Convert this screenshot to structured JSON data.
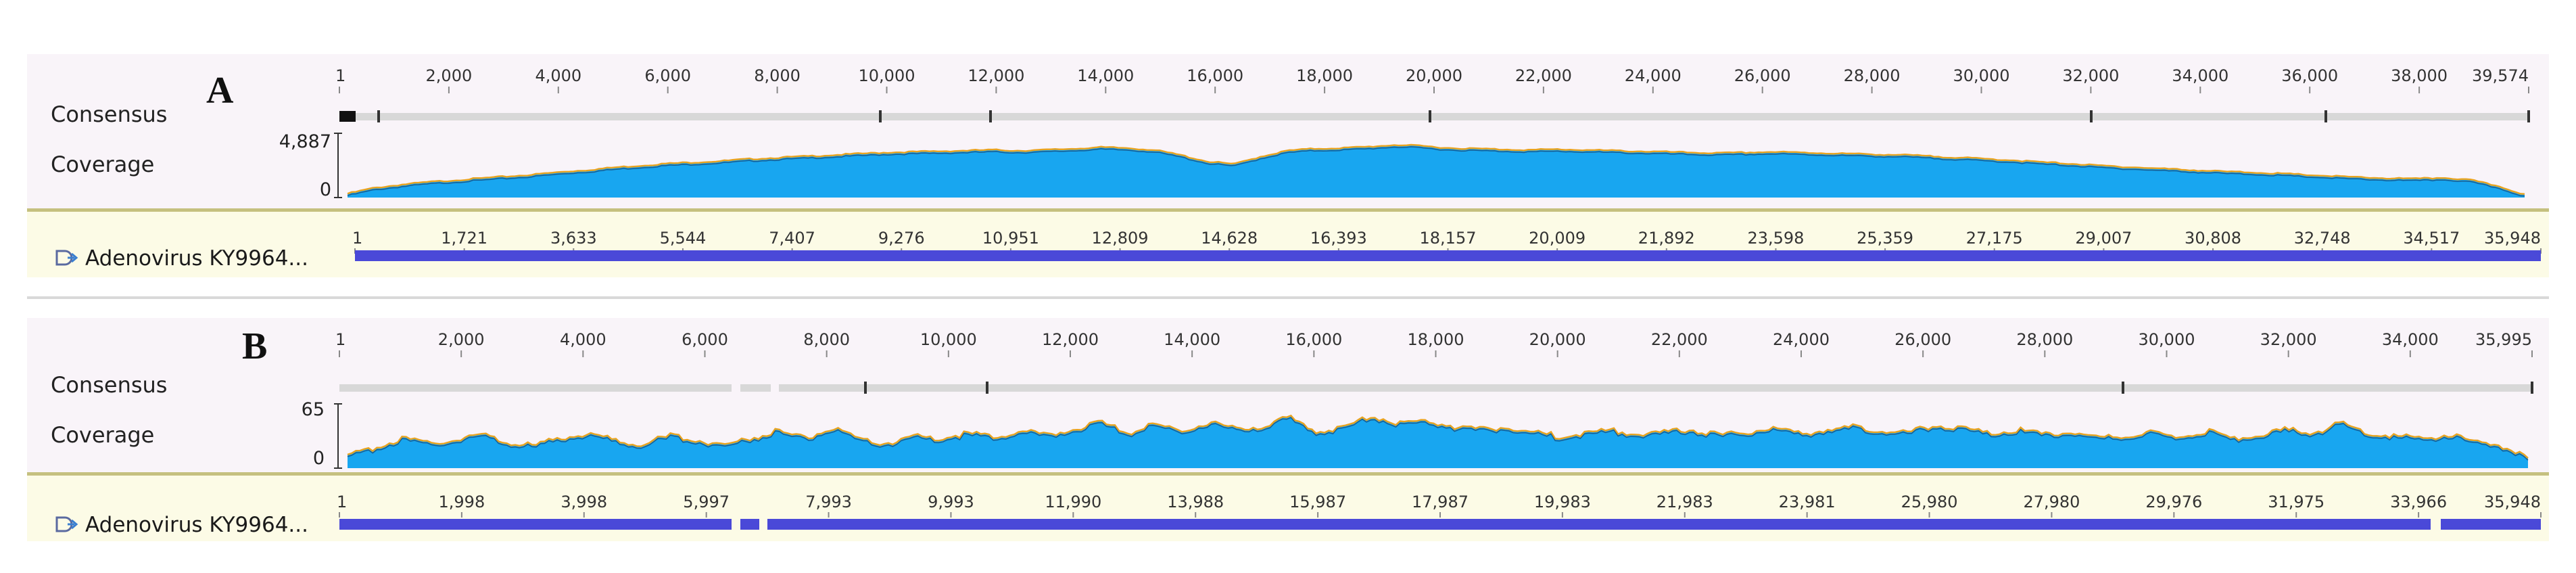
{
  "panels": [
    {
      "letter": "A",
      "consensus_label": "Consensus",
      "coverage_label": "Coverage",
      "coverage_max": "4,887",
      "coverage_min": "0",
      "ruler_ticks": [
        "1",
        "2,000",
        "4,000",
        "6,000",
        "8,000",
        "10,000",
        "12,000",
        "14,000",
        "16,000",
        "18,000",
        "20,000",
        "22,000",
        "24,000",
        "26,000",
        "28,000",
        "30,000",
        "32,000",
        "34,000",
        "36,000",
        "38,000",
        "39,574"
      ],
      "reference_name": "Adenovirus KY9964...",
      "reference_ticks": [
        "1",
        "1,721",
        "3,633",
        "5,544",
        "7,407",
        "9,276",
        "10,951",
        "12,809",
        "14,628",
        "16,393",
        "18,157",
        "20,009",
        "21,892",
        "23,598",
        "25,359",
        "27,175",
        "29,007",
        "30,808",
        "32,748",
        "34,517",
        "35,948"
      ],
      "coverage_profile": [
        0.06,
        0.15,
        0.2,
        0.24,
        0.27,
        0.3,
        0.33,
        0.36,
        0.4,
        0.43,
        0.47,
        0.5,
        0.53,
        0.55,
        0.57,
        0.6,
        0.62,
        0.64,
        0.66,
        0.68,
        0.7,
        0.71,
        0.72,
        0.73,
        0.74,
        0.73,
        0.74,
        0.76,
        0.78,
        0.77,
        0.74,
        0.66,
        0.56,
        0.52,
        0.64,
        0.73,
        0.76,
        0.77,
        0.79,
        0.82,
        0.8,
        0.77,
        0.76,
        0.75,
        0.74,
        0.75,
        0.74,
        0.73,
        0.72,
        0.71,
        0.7,
        0.69,
        0.7,
        0.71,
        0.7,
        0.69,
        0.68,
        0.67,
        0.66,
        0.64,
        0.62,
        0.6,
        0.58,
        0.55,
        0.53,
        0.5,
        0.48,
        0.46,
        0.44,
        0.42,
        0.4,
        0.39,
        0.37,
        0.35,
        0.33,
        0.31,
        0.3,
        0.29,
        0.31,
        0.27,
        0.18,
        0.05
      ]
    },
    {
      "letter": "B",
      "consensus_label": "Consensus",
      "coverage_label": "Coverage",
      "coverage_max": "65",
      "coverage_min": "0",
      "ruler_ticks": [
        "1",
        "2,000",
        "4,000",
        "6,000",
        "8,000",
        "10,000",
        "12,000",
        "14,000",
        "16,000",
        "18,000",
        "20,000",
        "22,000",
        "24,000",
        "26,000",
        "28,000",
        "30,000",
        "32,000",
        "34,000",
        "35,995"
      ],
      "reference_name": "Adenovirus KY9964...",
      "reference_ticks": [
        "1",
        "1,998",
        "3,998",
        "5,997",
        "7,993",
        "9,993",
        "11,990",
        "13,988",
        "15,987",
        "17,987",
        "19,983",
        "21,983",
        "23,981",
        "25,980",
        "27,980",
        "29,976",
        "31,975",
        "33,966",
        "35,948"
      ],
      "coverage_profile": [
        0.18,
        0.32,
        0.46,
        0.38,
        0.45,
        0.52,
        0.4,
        0.35,
        0.48,
        0.55,
        0.42,
        0.38,
        0.5,
        0.44,
        0.36,
        0.47,
        0.58,
        0.46,
        0.62,
        0.44,
        0.38,
        0.5,
        0.46,
        0.54,
        0.48,
        0.58,
        0.5,
        0.62,
        0.7,
        0.55,
        0.68,
        0.58,
        0.72,
        0.6,
        0.66,
        0.78,
        0.58,
        0.62,
        0.82,
        0.7,
        0.74,
        0.66,
        0.6,
        0.64,
        0.56,
        0.5,
        0.54,
        0.58,
        0.52,
        0.55,
        0.6,
        0.5,
        0.56,
        0.62,
        0.54,
        0.6,
        0.64,
        0.58,
        0.56,
        0.66,
        0.62,
        0.54,
        0.6,
        0.52,
        0.58,
        0.46,
        0.5,
        0.56,
        0.48,
        0.58,
        0.46,
        0.5,
        0.6,
        0.54,
        0.7,
        0.56,
        0.5,
        0.46,
        0.52,
        0.42,
        0.36,
        0.14
      ]
    }
  ]
}
